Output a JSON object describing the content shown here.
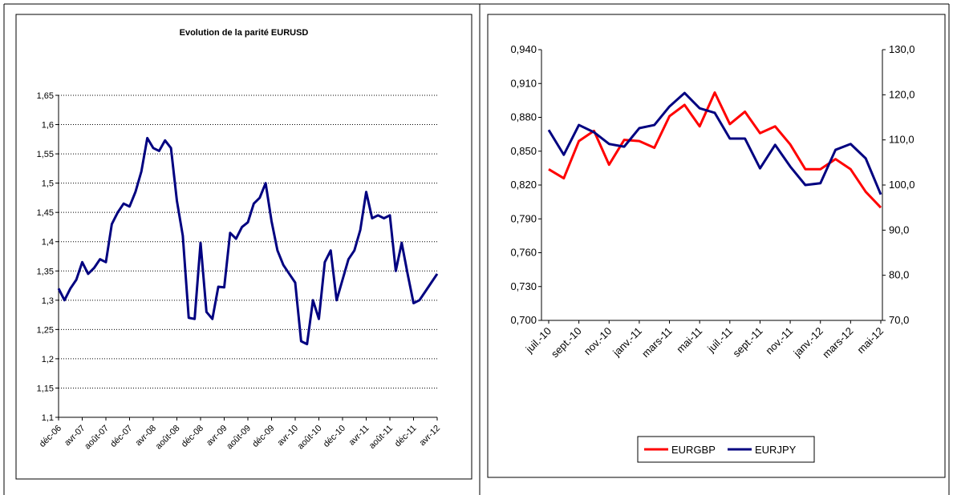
{
  "chart_data": [
    {
      "type": "line",
      "title": "Evolution de la parité EURUSD",
      "categories": [
        "déc-06",
        null,
        null,
        null,
        "avr-07",
        null,
        null,
        null,
        "août-07",
        null,
        null,
        null,
        "déc-07",
        null,
        null,
        null,
        "avr-08",
        null,
        null,
        null,
        "août-08",
        null,
        null,
        null,
        "déc-08",
        null,
        null,
        null,
        "avr-09",
        null,
        null,
        null,
        "août-09",
        null,
        null,
        null,
        "déc-09",
        null,
        null,
        null,
        "avr-10",
        null,
        null,
        null,
        "août-10",
        null,
        null,
        null,
        "déc-10",
        null,
        null,
        null,
        "avr-11",
        null,
        null,
        null,
        "août-11",
        null,
        null,
        null,
        "déc-11",
        null,
        null,
        null,
        "avr-12"
      ],
      "series": [
        {
          "name": "EURUSD",
          "color": "#000080",
          "values": [
            1.32,
            1.3,
            1.32,
            1.335,
            1.365,
            1.345,
            1.355,
            1.37,
            1.365,
            1.43,
            1.45,
            1.465,
            1.46,
            1.485,
            1.52,
            1.577,
            1.56,
            1.555,
            1.573,
            1.56,
            1.47,
            1.41,
            1.27,
            1.268,
            1.398,
            1.28,
            1.268,
            1.323,
            1.322,
            1.415,
            1.405,
            1.425,
            1.433,
            1.465,
            1.475,
            1.5,
            1.435,
            1.385,
            1.36,
            1.345,
            1.33,
            1.23,
            1.225,
            1.3,
            1.268,
            1.365,
            1.385,
            1.3,
            1.335,
            1.37,
            1.385,
            1.42,
            1.485,
            1.44,
            1.445,
            1.44,
            1.445,
            1.35,
            1.398,
            1.345,
            1.295,
            1.3,
            1.315,
            1.33,
            1.345
          ]
        }
      ],
      "ylim": [
        1.1,
        1.65
      ],
      "yticks": [
        {
          "value": 1.1,
          "label": "1,1"
        },
        {
          "value": 1.15,
          "label": "1,15"
        },
        {
          "value": 1.2,
          "label": "1,2"
        },
        {
          "value": 1.25,
          "label": "1,25"
        },
        {
          "value": 1.3,
          "label": "1,3"
        },
        {
          "value": 1.35,
          "label": "1,35"
        },
        {
          "value": 1.4,
          "label": "1,4"
        },
        {
          "value": 1.45,
          "label": "1,45"
        },
        {
          "value": 1.5,
          "label": "1,5"
        },
        {
          "value": 1.55,
          "label": "1,55"
        },
        {
          "value": 1.6,
          "label": "1,6"
        },
        {
          "value": 1.65,
          "label": "1,65"
        }
      ],
      "grid": true
    },
    {
      "type": "line",
      "categories": [
        "juil.-10",
        null,
        "sept.-10",
        null,
        "nov.-10",
        null,
        "janv.-11",
        null,
        "mars-11",
        null,
        "mai-11",
        null,
        "juil.-11",
        null,
        "sept.-11",
        null,
        "nov.-11",
        null,
        "janv.-12",
        null,
        "mars-12",
        null,
        "mai-12"
      ],
      "series": [
        {
          "name": "EURGBP",
          "color": "#ff0000",
          "values": [
            0.834,
            0.826,
            0.859,
            0.868,
            0.838,
            0.86,
            0.859,
            0.853,
            0.881,
            0.891,
            0.872,
            0.902,
            0.874,
            0.885,
            0.866,
            0.872,
            0.856,
            0.834,
            0.834,
            0.843,
            0.834,
            0.814,
            0.8
          ]
        },
        {
          "name": "EURJPY",
          "color": "#000080",
          "axis": "y2",
          "values": [
            112.2,
            106.7,
            113.3,
            111.7,
            109.1,
            108.5,
            112.6,
            113.3,
            117.4,
            120.4,
            117,
            116,
            110.3,
            110.3,
            103.7,
            108.9,
            104.1,
            100,
            100.4,
            107.8,
            109.1,
            105.9,
            97.9
          ]
        }
      ],
      "ylim": [
        0.7,
        0.94
      ],
      "yticks": [
        {
          "value": 0.7,
          "label": "0,700"
        },
        {
          "value": 0.73,
          "label": "0,730"
        },
        {
          "value": 0.76,
          "label": "0,760"
        },
        {
          "value": 0.79,
          "label": "0,790"
        },
        {
          "value": 0.82,
          "label": "0,820"
        },
        {
          "value": 0.85,
          "label": "0,850"
        },
        {
          "value": 0.88,
          "label": "0,880"
        },
        {
          "value": 0.91,
          "label": "0,910"
        },
        {
          "value": 0.94,
          "label": "0,940"
        }
      ],
      "y2lim": [
        70,
        130
      ],
      "y2ticks": [
        {
          "value": 70,
          "label": "70,0"
        },
        {
          "value": 80,
          "label": "80,0"
        },
        {
          "value": 90,
          "label": "90,0"
        },
        {
          "value": 100,
          "label": "100,0"
        },
        {
          "value": 110,
          "label": "110,0"
        },
        {
          "value": 120,
          "label": "120,0"
        },
        {
          "value": 130,
          "label": "130,0"
        }
      ],
      "grid": false,
      "legend": "bottom"
    }
  ]
}
